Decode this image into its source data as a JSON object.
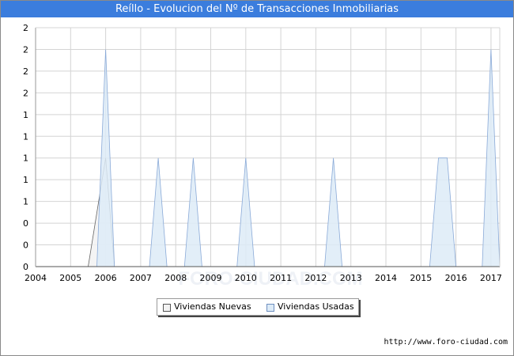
{
  "chart_data": {
    "type": "area",
    "title": "Reíllo - Evolucion del Nº de Transacciones Inmobiliarias",
    "x_ticks": [
      "2004",
      "2005",
      "2006",
      "2007",
      "2008",
      "2009",
      "2010",
      "2011",
      "2012",
      "2013",
      "2014",
      "2015",
      "2016",
      "2017"
    ],
    "y_ticks": [
      "0",
      "0",
      "0",
      "1",
      "1",
      "1",
      "1",
      "1",
      "2",
      "2",
      "2",
      "2"
    ],
    "xlim": [
      2004,
      2017.25
    ],
    "ylim": [
      0,
      2.2
    ],
    "grid": true,
    "legend_position": "bottom",
    "watermark": "FORO-CIUDAD.COM",
    "colors": {
      "nuevas": "#f2f2f2",
      "usadas": "#ddebf7",
      "nuevas_line": "#666666",
      "usadas_line": "#8aaad8",
      "title_bg": "#3b7ddd"
    },
    "series": [
      {
        "name": "Viviendas Nuevas",
        "points": [
          [
            2005.5,
            0
          ],
          [
            2006.0,
            1.0
          ],
          [
            2006.25,
            0
          ]
        ]
      },
      {
        "name": "Viviendas Usadas",
        "points": [
          [
            2005.75,
            0
          ],
          [
            2006.0,
            2.0
          ],
          [
            2006.25,
            0
          ],
          [
            2007.25,
            0
          ],
          [
            2007.5,
            1.0
          ],
          [
            2007.75,
            0
          ],
          [
            2008.25,
            0
          ],
          [
            2008.5,
            1.0
          ],
          [
            2008.75,
            0
          ],
          [
            2009.75,
            0
          ],
          [
            2010.0,
            1.0
          ],
          [
            2010.25,
            0
          ],
          [
            2012.25,
            0
          ],
          [
            2012.5,
            1.0
          ],
          [
            2012.75,
            0
          ],
          [
            2015.25,
            0
          ],
          [
            2015.5,
            1.0
          ],
          [
            2015.75,
            1.0
          ],
          [
            2016.0,
            0
          ],
          [
            2016.75,
            0
          ],
          [
            2017.0,
            2.0
          ],
          [
            2017.25,
            0
          ]
        ]
      }
    ]
  },
  "legend": {
    "nuevas_label": "Viviendas Nuevas",
    "usadas_label": "Viviendas Usadas"
  },
  "footer": {
    "source_text": "http://www.foro-ciudad.com"
  }
}
